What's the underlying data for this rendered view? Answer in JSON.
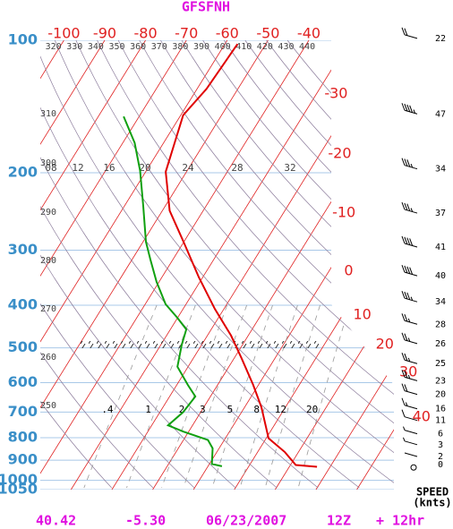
{
  "chart_data": {
    "type": "skewt",
    "title": "GFSFNH",
    "ylim": [
      100,
      1050
    ],
    "log_y": true,
    "yticks": [
      100,
      200,
      300,
      400,
      500,
      600,
      700,
      800,
      900,
      1000,
      1050
    ],
    "isotherms": [
      -100,
      -90,
      -80,
      -70,
      -60,
      -50,
      -40,
      -30,
      -20,
      -10,
      0,
      10,
      20,
      30,
      40
    ],
    "isotherm_color": "#e02020",
    "dry_adiabats": [
      250,
      260,
      270,
      280,
      290,
      300,
      310,
      320,
      330,
      340,
      350,
      360,
      370,
      380,
      390,
      400,
      410,
      420,
      430,
      440
    ],
    "mixing_ratios": [
      {
        "value": 0.4,
        "label": ".4"
      },
      1,
      2,
      3,
      5,
      8,
      12,
      20
    ],
    "moist_adiabat_labels": [
      "08",
      "12",
      "16",
      "20",
      "24",
      "28",
      "32"
    ],
    "temperature": {
      "color": "#e00000",
      "pressure": [
        102,
        129,
        148,
        171,
        199,
        244,
        287,
        346,
        408,
        469,
        528,
        607,
        682,
        803,
        862,
        923,
        932
      ],
      "values": [
        -56.9,
        -57.7,
        -59.4,
        -57.3,
        -55.1,
        -48.2,
        -40.1,
        -30.9,
        -22.2,
        -14.2,
        -8.2,
        -1.3,
        4.1,
        10.6,
        16.6,
        21.3,
        26.8
      ]
    },
    "dewpoint": {
      "color": "#10a010",
      "pressure": [
        149,
        171,
        198,
        238,
        287,
        315,
        354,
        398,
        427,
        454,
        492,
        552,
        607,
        645,
        700,
        750,
        775,
        810,
        846,
        918,
        929
      ],
      "values": [
        -73.8,
        -67.1,
        -61.5,
        -55.4,
        -49.3,
        -45.5,
        -40.6,
        -35.0,
        -30.1,
        -26.1,
        -24.9,
        -22.6,
        -17.3,
        -13.7,
        -14.3,
        -16.0,
        -11.3,
        -4.0,
        -1.6,
        0.6,
        3.4
      ]
    },
    "wind": {
      "pressure": [
        99,
        147,
        196,
        247,
        295,
        343,
        393,
        442,
        489,
        543,
        594,
        638,
        688,
        731,
        784,
        830,
        883,
        922
      ],
      "speed": [
        22,
        47,
        34,
        37,
        41,
        40,
        34,
        28,
        26,
        25,
        23,
        20,
        16,
        11,
        6,
        3,
        2,
        0
      ],
      "label": "SPEED",
      "unit_label": "(knts)"
    },
    "footer": [
      "40.42",
      "-5.30",
      "06/23/2007",
      "12Z",
      "+ 12hr"
    ]
  }
}
